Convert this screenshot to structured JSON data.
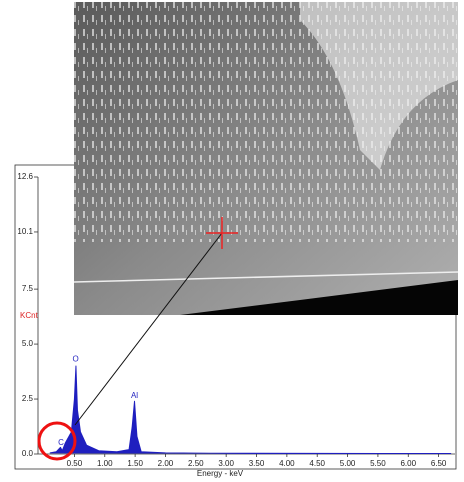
{
  "chart_data": {
    "type": "line",
    "x_label": "Energy - keV",
    "y_label": "KCnt",
    "xlim": [
      -0.1,
      6.77
    ],
    "ylim": [
      0,
      12.6
    ],
    "xticks": [
      {
        "value": 0.5,
        "label": "0.50"
      },
      {
        "value": 1,
        "label": "1.00"
      },
      {
        "value": 1.5,
        "label": "1.50"
      },
      {
        "value": 2,
        "label": "2.00"
      },
      {
        "value": 2.5,
        "label": "2.50"
      },
      {
        "value": 3,
        "label": "3.00"
      },
      {
        "value": 3.5,
        "label": "3.50"
      },
      {
        "value": 4,
        "label": "4.00"
      },
      {
        "value": 4.5,
        "label": "4.50"
      },
      {
        "value": 5,
        "label": "5.00"
      },
      {
        "value": 5.5,
        "label": "5.50"
      },
      {
        "value": 6,
        "label": "6.00"
      },
      {
        "value": 6.5,
        "label": "6.50"
      }
    ],
    "yticks": [
      {
        "value": 0,
        "label": "0.0"
      },
      2.5,
      {
        "value": 5,
        "label": "5.0"
      },
      7.5,
      10.1,
      12.6
    ],
    "x": [
      0.1,
      0.2,
      0.27,
      0.3,
      0.35,
      0.45,
      0.5,
      0.525,
      0.55,
      0.6,
      0.7,
      0.9,
      1.2,
      1.4,
      1.45,
      1.49,
      1.53,
      1.6,
      2,
      3,
      4,
      5,
      6,
      6.7
    ],
    "series": [
      {
        "color": "#1f1fbf",
        "values": [
          0.05,
          0.1,
          0.3,
          0.15,
          0.5,
          1.0,
          2.5,
          4.0,
          2.0,
          1.0,
          0.4,
          0.15,
          0.1,
          0.2,
          1.2,
          2.4,
          0.8,
          0.1,
          0.05,
          0.03,
          0.02,
          0.02,
          0.02,
          0.02
        ]
      }
    ],
    "annotations": [
      {
        "text": "O",
        "x": 0.52,
        "y": 4.3
      },
      {
        "text": "Al",
        "x": 1.49,
        "y": 2.65
      },
      {
        "text": "C",
        "x": 0.28,
        "y": 0.5
      }
    ]
  }
}
